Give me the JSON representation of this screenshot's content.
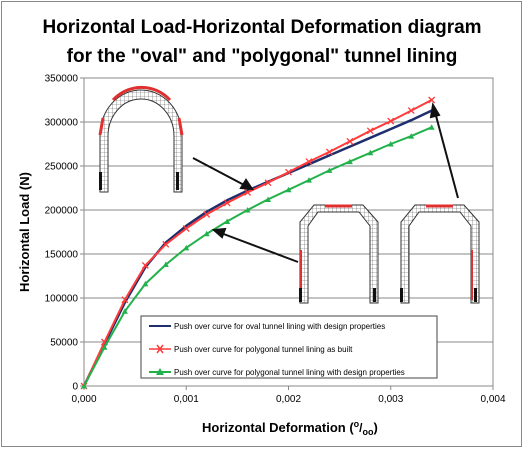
{
  "chart_data": {
    "type": "line",
    "title_lines": [
      "Horizontal Load-Horizontal Deformation diagram",
      "for the \"oval\" and \"polygonal\" tunnel lining"
    ],
    "xlabel": "Horizontal Deformation (",
    "xlabel_unit_sup": "o",
    "xlabel_unit_sub": "oo",
    "xlabel_close": ")",
    "ylabel": "Horizontal Load (N)",
    "xlim": [
      0,
      0.004
    ],
    "ylim": [
      0,
      350000
    ],
    "x_ticks": [
      0,
      0.001,
      0.002,
      0.003,
      0.004
    ],
    "x_tick_labels": [
      "0,000",
      "0,001",
      "0,002",
      "0,003",
      "0,004"
    ],
    "y_ticks": [
      0,
      50000,
      100000,
      150000,
      200000,
      250000,
      300000,
      350000
    ],
    "y_tick_labels": [
      "0",
      "50000",
      "100000",
      "150000",
      "200000",
      "250000",
      "300000",
      "350000"
    ],
    "grid": "horizontal",
    "legend_position": "bottom-center",
    "series": [
      {
        "name": "Push over curve for oval tunnel lining with design properties",
        "color": "#1f2f6e",
        "marker": "none",
        "x": [
          0,
          0.0002,
          0.0004,
          0.0006,
          0.0008,
          0.001,
          0.0012,
          0.0014,
          0.0016,
          0.0018,
          0.002,
          0.0022,
          0.0024,
          0.0026,
          0.0028,
          0.003,
          0.0032,
          0.0034
        ],
        "y": [
          0,
          48000,
          95000,
          135000,
          163000,
          182000,
          198000,
          211000,
          222000,
          232000,
          242000,
          252000,
          262000,
          272000,
          282000,
          292000,
          302000,
          313000
        ]
      },
      {
        "name": "Push over curve for polygonal tunnel lining as built",
        "color": "#ff3b3b",
        "marker": "x",
        "x": [
          0,
          0.0002,
          0.0004,
          0.0006,
          0.0008,
          0.001,
          0.0012,
          0.0014,
          0.0016,
          0.0018,
          0.002,
          0.0022,
          0.0024,
          0.0026,
          0.0028,
          0.003,
          0.0032,
          0.0034
        ],
        "y": [
          0,
          50000,
          98000,
          137000,
          161000,
          179000,
          195000,
          208000,
          220000,
          231000,
          243000,
          255000,
          266000,
          278000,
          290000,
          301000,
          313000,
          325000
        ]
      },
      {
        "name": "Push over curve for polygonal tunnel lining with design properties",
        "color": "#22b24c",
        "marker": "triangle",
        "x": [
          0,
          0.0002,
          0.0004,
          0.0006,
          0.0008,
          0.001,
          0.0012,
          0.0014,
          0.0016,
          0.0018,
          0.002,
          0.0022,
          0.0024,
          0.0026,
          0.0028,
          0.003,
          0.0032,
          0.0034
        ],
        "y": [
          0,
          44000,
          85000,
          116000,
          138000,
          157000,
          173000,
          187000,
          200000,
          212000,
          223000,
          234000,
          245000,
          255000,
          265000,
          275000,
          284000,
          294000
        ]
      }
    ]
  }
}
